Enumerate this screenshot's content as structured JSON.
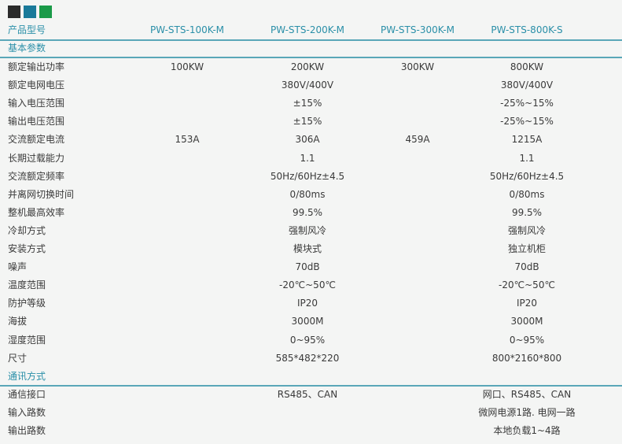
{
  "swatches": [
    "#2b2b2b",
    "#1a7a9a",
    "#1a9a48"
  ],
  "header": {
    "label": "产品型号",
    "models": [
      "PW-STS-100K-M",
      "PW-STS-200K-M",
      "PW-STS-300K-M",
      "PW-STS-800K-S"
    ]
  },
  "section1": "基本参数",
  "rows": [
    {
      "label": "额定输出功率",
      "c1": "100KW",
      "c2": "200KW",
      "c3": "300KW",
      "c4": "800KW"
    },
    {
      "label": "额定电网电压",
      "c2": "380V/400V",
      "c4": "380V/400V"
    },
    {
      "label": "输入电压范围",
      "c2": "±15%",
      "c4": "-25%~15%"
    },
    {
      "label": "输出电压范围",
      "c2": "±15%",
      "c4": "-25%~15%"
    },
    {
      "label": "交流额定电流",
      "c1": "153A",
      "c2": "306A",
      "c3": "459A",
      "c4": "1215A"
    },
    {
      "label": "长期过载能力",
      "c2": "1.1",
      "c4": "1.1"
    },
    {
      "label": "交流额定频率",
      "c2": "50Hz/60Hz±4.5",
      "c4": "50Hz/60Hz±4.5"
    },
    {
      "label": "并离网切换时间",
      "c2": "0/80ms",
      "c4": "0/80ms"
    },
    {
      "label": "整机最高效率",
      "c2": "99.5%",
      "c4": "99.5%"
    },
    {
      "label": "冷却方式",
      "c2": "强制风冷",
      "c4": "强制风冷"
    },
    {
      "label": "安装方式",
      "c2": "模块式",
      "c4": "独立机柜"
    },
    {
      "label": "噪声",
      "c2": "70dB",
      "c4": "70dB"
    },
    {
      "label": "温度范围",
      "c2": "-20℃~50℃",
      "c4": "-20℃~50℃"
    },
    {
      "label": "防护等级",
      "c2": "IP20",
      "c4": "IP20"
    },
    {
      "label": "海拔",
      "c2": "3000M",
      "c4": "3000M"
    },
    {
      "label": "湿度范围",
      "c2": "0~95%",
      "c4": "0~95%"
    },
    {
      "label": "尺寸",
      "c2": "585*482*220",
      "c4": "800*2160*800"
    }
  ],
  "section2": "通讯方式",
  "rows2": [
    {
      "label": "通信接口",
      "c2": "RS485、CAN",
      "c4": "网口、RS485、CAN"
    },
    {
      "label": "输入路数",
      "c4": "微网电源1路. 电网一路"
    },
    {
      "label": "输出路数",
      "c4": "本地负载1~4路"
    }
  ]
}
